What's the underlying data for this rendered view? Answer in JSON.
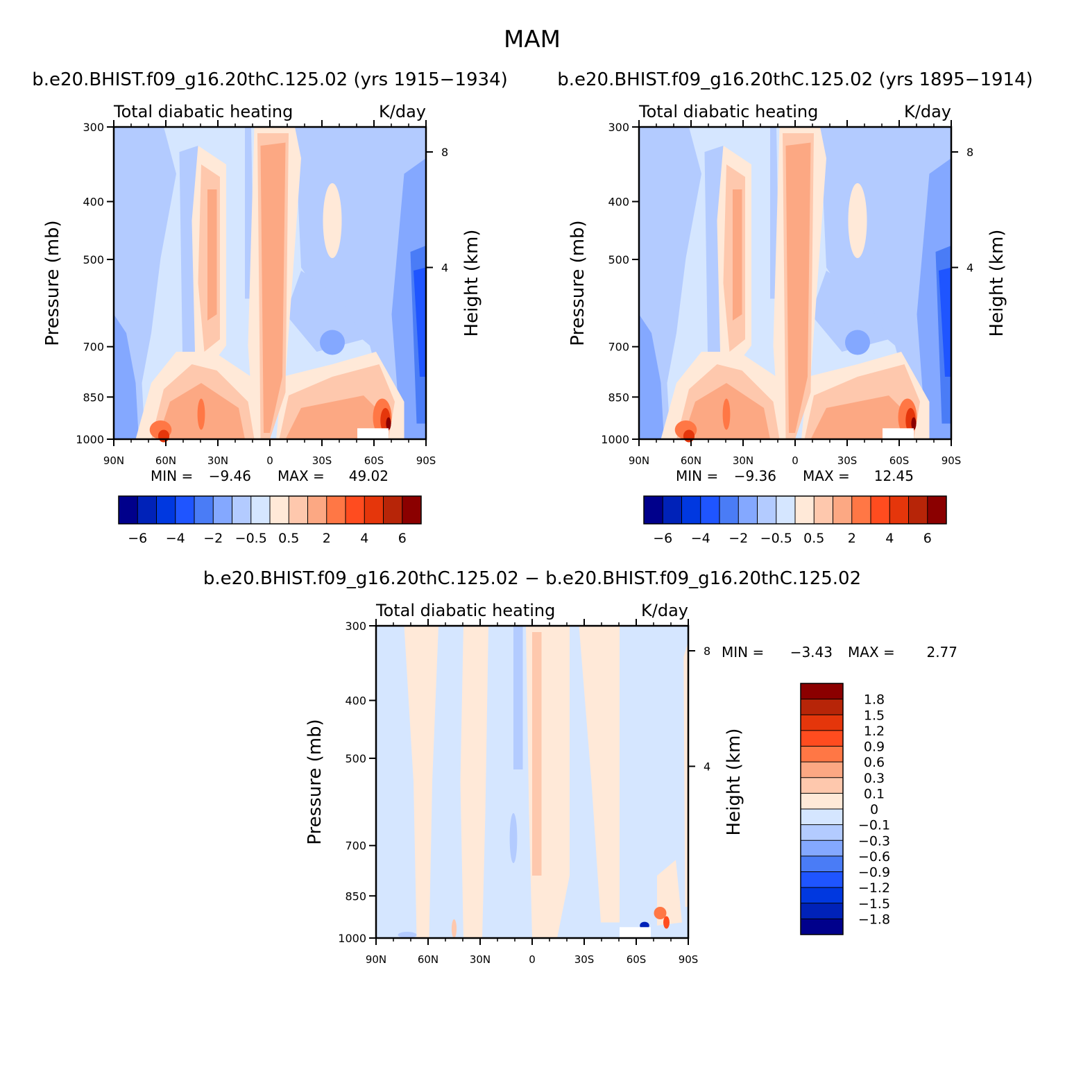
{
  "page_title": "MAM",
  "chart_data": [
    {
      "type": "heatmap",
      "title": "b.e20.BHIST.f09_g16.20thC.125.02 (yrs 1915−1934)",
      "left_string": "Total diabatic heating",
      "right_string": "K/day",
      "ylabel": "Pressure (mb)",
      "ylabel_right": "Height (km)",
      "x_ticks": [
        "90N",
        "60N",
        "30N",
        "0",
        "30S",
        "60S",
        "90S"
      ],
      "y_ticks": [
        "300",
        "400",
        "500",
        "700",
        "850",
        "1000"
      ],
      "y_ticks_right": [
        "8",
        "4"
      ],
      "xlim": [
        90,
        -90
      ],
      "ylim": [
        1000,
        300
      ],
      "min_label": "MIN =",
      "min_value": "−9.46",
      "max_label": "MAX =",
      "max_value": "49.02",
      "colorbar_labels": [
        "−6",
        "−4",
        "−2",
        "−0.5",
        "0.5",
        "2",
        "4",
        "6"
      ]
    },
    {
      "type": "heatmap",
      "title": "b.e20.BHIST.f09_g16.20thC.125.02 (yrs 1895−1914)",
      "left_string": "Total diabatic heating",
      "right_string": "K/day",
      "ylabel": "Pressure (mb)",
      "ylabel_right": "Height (km)",
      "x_ticks": [
        "90N",
        "60N",
        "30N",
        "0",
        "30S",
        "60S",
        "90S"
      ],
      "y_ticks": [
        "300",
        "400",
        "500",
        "700",
        "850",
        "1000"
      ],
      "y_ticks_right": [
        "8",
        "4"
      ],
      "xlim": [
        90,
        -90
      ],
      "ylim": [
        1000,
        300
      ],
      "min_label": "MIN =",
      "min_value": "−9.36",
      "max_label": "MAX =",
      "max_value": "12.45",
      "colorbar_labels": [
        "−6",
        "−4",
        "−2",
        "−0.5",
        "0.5",
        "2",
        "4",
        "6"
      ]
    },
    {
      "type": "heatmap",
      "title": "b.e20.BHIST.f09_g16.20thC.125.02 − b.e20.BHIST.f09_g16.20thC.125.02",
      "left_string": "Total diabatic heating",
      "right_string": "K/day",
      "ylabel": "Pressure (mb)",
      "ylabel_right": "Height (km)",
      "x_ticks": [
        "90N",
        "60N",
        "30N",
        "0",
        "30S",
        "60S",
        "90S"
      ],
      "y_ticks": [
        "300",
        "400",
        "500",
        "700",
        "850",
        "1000"
      ],
      "y_ticks_right": [
        "8",
        "4"
      ],
      "xlim": [
        90,
        -90
      ],
      "ylim": [
        1000,
        300
      ],
      "min_label": "MIN =",
      "min_value": "−3.43",
      "max_label": "MAX =",
      "max_value": "2.77",
      "colorbar_labels": [
        "1.8",
        "1.5",
        "1.2",
        "0.9",
        "0.6",
        "0.3",
        "0.1",
        "0",
        "−0.1",
        "−0.3",
        "−0.6",
        "−0.9",
        "−1.2",
        "−1.5",
        "−1.8"
      ]
    }
  ],
  "colors": {
    "palette_main": [
      "#00008b",
      "#0022b8",
      "#0038e0",
      "#1f55ff",
      "#4a7cf6",
      "#84a8ff",
      "#b3cbff",
      "#d5e6ff",
      "#ffe9d8",
      "#fec8ad",
      "#fca883",
      "#ff7745",
      "#ff4c1f",
      "#e5360b",
      "#b72508",
      "#8b0000"
    ],
    "palette_diff": [
      "#8b0000",
      "#b72508",
      "#e5360b",
      "#ff4c1f",
      "#ff7745",
      "#fca883",
      "#fec8ad",
      "#ffe9d8",
      "#d5e6ff",
      "#b3cbff",
      "#84a8ff",
      "#4a7cf6",
      "#1f55ff",
      "#0038e0",
      "#0022b8",
      "#00008b"
    ]
  }
}
